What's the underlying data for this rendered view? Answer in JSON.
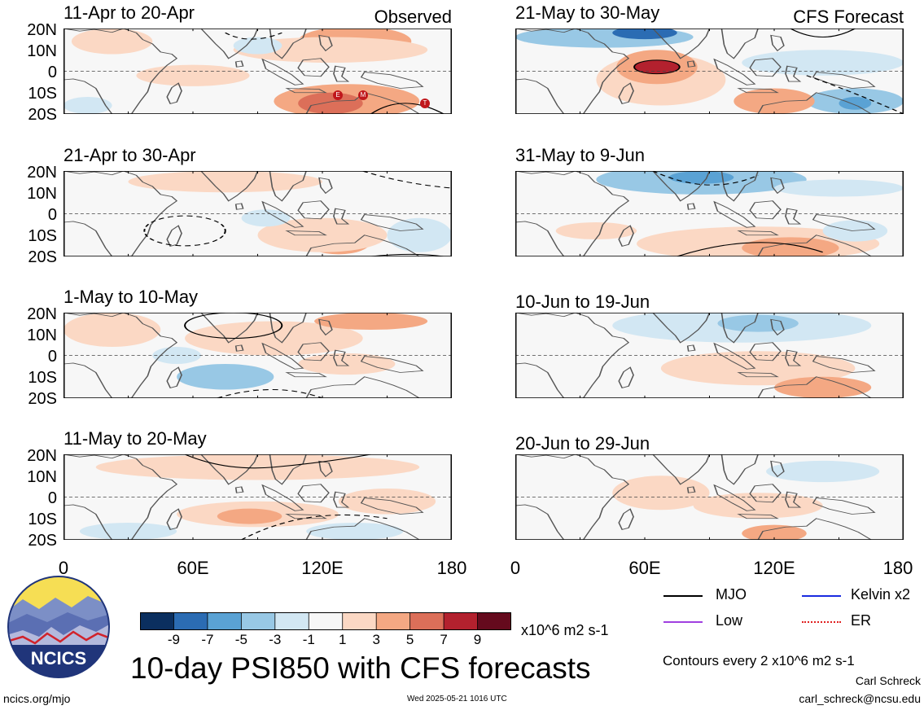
{
  "headers": {
    "left": "Observed",
    "right": "CFS Forecast"
  },
  "panels": {
    "left": [
      {
        "title": "11-Apr to 20-Apr"
      },
      {
        "title": "21-Apr to 30-Apr"
      },
      {
        "title": "1-May to 10-May"
      },
      {
        "title": "11-May to 20-May"
      }
    ],
    "right": [
      {
        "title": "21-May to 30-May"
      },
      {
        "title": "31-May to 9-Jun"
      },
      {
        "title": "10-Jun to 19-Jun"
      },
      {
        "title": "20-Jun to 29-Jun"
      }
    ]
  },
  "lat_labels": [
    "20N",
    "10N",
    "0",
    "10S",
    "20S"
  ],
  "lon_labels": [
    "0",
    "60E",
    "120E",
    "180"
  ],
  "colorbar": {
    "colors": [
      "#0b2f5f",
      "#2b6cb3",
      "#5aa2d4",
      "#98c8e5",
      "#d2e7f3",
      "#f7f7f7",
      "#fbd8c4",
      "#f4a883",
      "#dc6f59",
      "#b3212e",
      "#650a1d"
    ],
    "labels": [
      "-9",
      "-7",
      "-5",
      "-3",
      "-1",
      "1",
      "3",
      "5",
      "7",
      "9"
    ],
    "units": "x10^6 m2 s-1"
  },
  "legend": [
    {
      "label": "MJO",
      "color": "#000000"
    },
    {
      "label": "Kelvin x2",
      "color": "#1a2be0"
    },
    {
      "label": "Low",
      "color": "#a040e0"
    },
    {
      "label": "ER",
      "color": "#e02020"
    }
  ],
  "markers": [
    {
      "label": "E"
    },
    {
      "label": "M"
    },
    {
      "label": "T"
    }
  ],
  "logo_text": "NCICS",
  "main_title": "10-day PSI850 with CFS forecasts",
  "contour_note": "Contours every 2 x10^6 m2 s-1",
  "author": "Carl Schreck",
  "email": "carl_schreck@ncsu.edu",
  "website": "ncics.org/mjo",
  "timestamp": "Wed 2025-05-21 1016 UTC"
}
